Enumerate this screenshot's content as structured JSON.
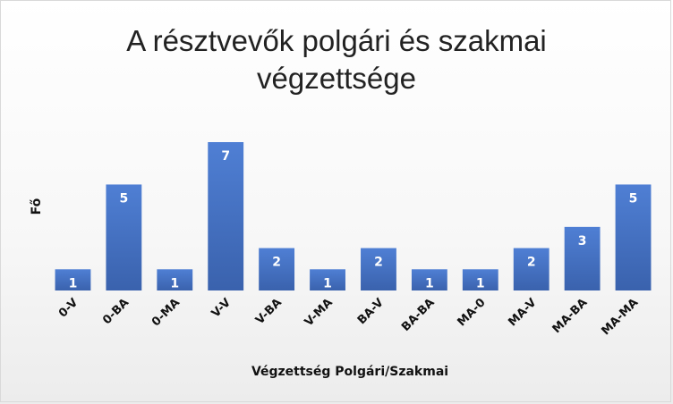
{
  "chart_data": {
    "type": "bar",
    "title": "A résztvevők polgári és szakmai végzettsége",
    "title_lines": [
      "A résztvevők polgári és szakmai",
      "végzettsége"
    ],
    "xlabel": "Végzettség Polgári/Szakmai",
    "ylabel": "Fő",
    "categories": [
      "0-V",
      "0-BA",
      "0-MA",
      "V-V",
      "V-BA",
      "V-MA",
      "BA-V",
      "BA-BA",
      "MA-0",
      "MA-V",
      "MA-BA",
      "MA-MA"
    ],
    "values": [
      1,
      5,
      1,
      7,
      2,
      1,
      2,
      1,
      1,
      2,
      3,
      5
    ],
    "ylim": [
      0,
      7
    ],
    "grid": false,
    "legend": "none",
    "colors": {
      "bar_top": "#4f7fd4",
      "bar_bottom": "#3a62ad",
      "data_label": "#ffffff"
    }
  }
}
